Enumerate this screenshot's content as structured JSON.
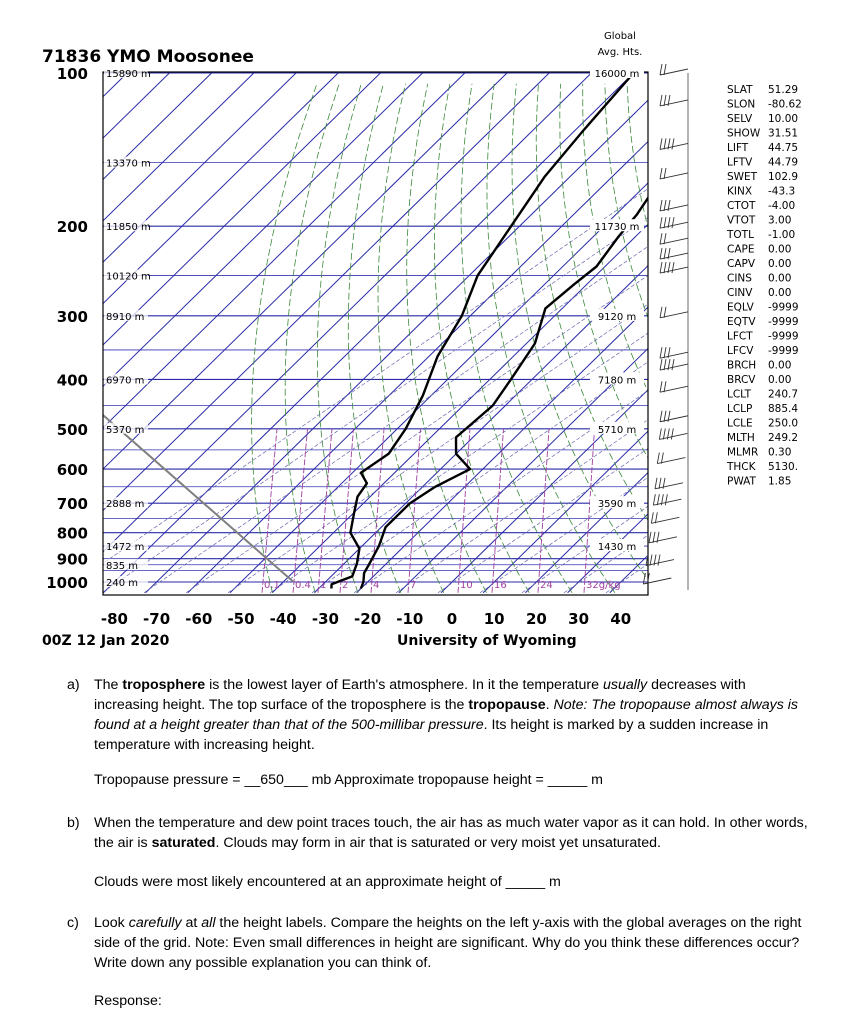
{
  "chart_data": {
    "type": "line",
    "title": "71836 YMO Moosonee",
    "subtitle_left": "00Z 12 Jan 2020",
    "subtitle_right": "University of Wyoming",
    "right_header": [
      "Global",
      "Avg. Hts."
    ],
    "x_ticks": [
      -80,
      -70,
      -60,
      -50,
      -40,
      -30,
      -20,
      -10,
      0,
      10,
      20,
      30,
      40
    ],
    "y_ticks": [
      100,
      200,
      300,
      400,
      500,
      600,
      700,
      800,
      900,
      1000
    ],
    "y_scale": "log",
    "ylim": [
      1050,
      100
    ],
    "station_heights": [
      {
        "p": 100,
        "label": "15890 m"
      },
      {
        "p": 150,
        "label": "13370 m"
      },
      {
        "p": 200,
        "label": "11850 m"
      },
      {
        "p": 250,
        "label": "10120 m"
      },
      {
        "p": 300,
        "label": "8910 m"
      },
      {
        "p": 400,
        "label": "6970 m"
      },
      {
        "p": 500,
        "label": "5370 m"
      },
      {
        "p": 700,
        "label": "2888 m"
      },
      {
        "p": 850,
        "label": "1472 m"
      },
      {
        "p": 925,
        "label": "835 m"
      },
      {
        "p": 1000,
        "label": "240 m"
      }
    ],
    "global_heights": [
      {
        "p": 100,
        "label": "16000 m"
      },
      {
        "p": 200,
        "label": "11730 m"
      },
      {
        "p": 300,
        "label": "9120 m"
      },
      {
        "p": 400,
        "label": "7180 m"
      },
      {
        "p": 500,
        "label": "5710 m"
      },
      {
        "p": 700,
        "label": "3590 m"
      },
      {
        "p": 850,
        "label": "1430 m"
      }
    ],
    "mixing_ratio_labels": [
      "0.1",
      "0.4",
      "1",
      "2",
      "4",
      "7",
      "10",
      "16",
      "24",
      "32g/kg"
    ],
    "series": [
      {
        "color": "#000000",
        "points": [
          [
            -49,
            100
          ],
          [
            -48,
            115
          ],
          [
            -46,
            130
          ],
          [
            -46,
            150
          ],
          [
            -47,
            170
          ],
          [
            -45,
            190
          ],
          [
            -44,
            210
          ],
          [
            -42,
            240
          ],
          [
            -43,
            260
          ],
          [
            -44,
            290
          ],
          [
            -38,
            340
          ],
          [
            -35,
            400
          ],
          [
            -33,
            450
          ],
          [
            -34,
            520
          ],
          [
            -30,
            560
          ],
          [
            -23,
            600
          ],
          [
            -27,
            650
          ],
          [
            -29,
            700
          ],
          [
            -29,
            780
          ],
          [
            -26,
            850
          ],
          [
            -24,
            920
          ],
          [
            -23,
            960
          ],
          [
            -21,
            1000
          ],
          [
            -20,
            1030
          ]
        ]
      },
      {
        "color": "#000000",
        "points": [
          [
            -80,
            100
          ],
          [
            -78,
            130
          ],
          [
            -76,
            160
          ],
          [
            -72,
            200
          ],
          [
            -68,
            250
          ],
          [
            -62,
            300
          ],
          [
            -58,
            360
          ],
          [
            -52,
            430
          ],
          [
            -48,
            500
          ],
          [
            -46,
            560
          ],
          [
            -48,
            610
          ],
          [
            -44,
            640
          ],
          [
            -43,
            680
          ],
          [
            -40,
            730
          ],
          [
            -36,
            800
          ],
          [
            -30,
            860
          ],
          [
            -27,
            920
          ],
          [
            -25,
            975
          ],
          [
            -28,
            1010
          ],
          [
            -27,
            1030
          ]
        ]
      }
    ],
    "indices": [
      [
        "SLAT",
        "51.29"
      ],
      [
        "SLON",
        "-80.62"
      ],
      [
        "SELV",
        "10.00"
      ],
      [
        "SHOW",
        "31.51"
      ],
      [
        "LIFT",
        "44.75"
      ],
      [
        "LFTV",
        "44.79"
      ],
      [
        "SWET",
        "102.9"
      ],
      [
        "KINX",
        "-43.3"
      ],
      [
        "CTOT",
        "-4.00"
      ],
      [
        "VTOT",
        "3.00"
      ],
      [
        "TOTL",
        "-1.00"
      ],
      [
        "CAPE",
        "0.00"
      ],
      [
        "CAPV",
        "0.00"
      ],
      [
        "CINS",
        "0.00"
      ],
      [
        "CINV",
        "0.00"
      ],
      [
        "EQLV",
        "-9999"
      ],
      [
        "EQTV",
        "-9999"
      ],
      [
        "LFCT",
        "-9999"
      ],
      [
        "LFCV",
        "-9999"
      ],
      [
        "BRCH",
        "0.00"
      ],
      [
        "BRCV",
        "0.00"
      ],
      [
        "LCLT",
        "240.7"
      ],
      [
        "LCLP",
        "885.4"
      ],
      [
        "LCLE",
        "250.0"
      ],
      [
        "MLTH",
        "249.2"
      ],
      [
        "MLMR",
        "0.30"
      ],
      [
        "THCK",
        "5130."
      ],
      [
        "PWAT",
        "1.85"
      ]
    ]
  },
  "questions": {
    "a": {
      "label": "a)",
      "pre": "The ",
      "bold1": "troposphere",
      "mid1": " is the lowest layer of Earth's atmosphere. In it the temperature ",
      "ital1": "usually",
      "mid2": " decreases with increasing height. The top surface of the troposphere is the ",
      "bold2": "tropopause",
      "mid3": ". ",
      "ital2": "Note: The tropopause almost always is found at a height greater than that of the 500-millibar pressure",
      "post": ". Its height is marked by a sudden increase in temperature with increasing height.",
      "answer_pre": "Tropopause pressure = __",
      "answer_value": "650",
      "answer_mid": "___ mb   Approximate tropopause height = _____ m"
    },
    "b": {
      "label": "b)",
      "pre": "When the temperature and dew point traces touch, the air has as much water vapor as it can hold. In other words, the air is ",
      "bold": "saturated",
      "post": ". Clouds may form in air that is saturated or very moist yet unsaturated.",
      "answer": "Clouds were most likely encountered at an approximate height of _____ m"
    },
    "c": {
      "label": "c)",
      "pre": "Look ",
      "ital1": "carefully",
      "mid1": " at ",
      "ital2": "all",
      "post": " the height labels. Compare the heights on the left y-axis with the global averages on the right side of the grid. Note: Even small differences in height are significant. Why do you think these differences occur? Write down any possible explanation you can think of.",
      "response": "Response:"
    }
  }
}
